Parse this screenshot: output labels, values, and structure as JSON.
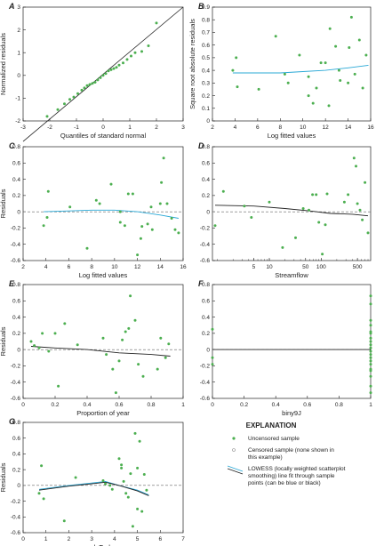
{
  "colors": {
    "point": "#4caf50",
    "lowess": "#29a8d6",
    "lowess_black": "#222222",
    "axis": "#222222",
    "zero_line": "#666666"
  },
  "chart_data": [
    {
      "panel": "A",
      "type": "scatter",
      "xlabel": "Quantiles of standard normal",
      "ylabel": "Normalized residuals",
      "xlim": [
        -3,
        3
      ],
      "ylim": [
        -2,
        3
      ],
      "xticks": [
        -3,
        -2,
        -1,
        0,
        1,
        2,
        3
      ],
      "yticks": [
        -2,
        -1,
        0,
        1,
        2,
        3
      ],
      "reference_line": [
        [
          -3,
          -2.9
        ],
        [
          3,
          3.0
        ]
      ],
      "points": [
        [
          -2.1,
          -1.8
        ],
        [
          -1.7,
          -1.5
        ],
        [
          -1.45,
          -1.25
        ],
        [
          -1.25,
          -1.05
        ],
        [
          -1.1,
          -0.95
        ],
        [
          -0.95,
          -0.8
        ],
        [
          -0.8,
          -0.65
        ],
        [
          -0.7,
          -0.55
        ],
        [
          -0.6,
          -0.45
        ],
        [
          -0.5,
          -0.4
        ],
        [
          -0.4,
          -0.35
        ],
        [
          -0.3,
          -0.3
        ],
        [
          -0.2,
          -0.2
        ],
        [
          -0.1,
          -0.1
        ],
        [
          0.0,
          0.0
        ],
        [
          0.1,
          0.08
        ],
        [
          0.2,
          0.2
        ],
        [
          0.3,
          0.25
        ],
        [
          0.4,
          0.3
        ],
        [
          0.5,
          0.35
        ],
        [
          0.6,
          0.45
        ],
        [
          0.75,
          0.55
        ],
        [
          0.9,
          0.7
        ],
        [
          1.05,
          0.85
        ],
        [
          1.2,
          1.0
        ],
        [
          1.45,
          1.05
        ],
        [
          1.7,
          1.3
        ],
        [
          2.0,
          2.3
        ]
      ]
    },
    {
      "panel": "B",
      "type": "scatter",
      "xlabel": "Log fitted values",
      "ylabel": "Square root absolute residuals",
      "xlim": [
        2,
        16
      ],
      "ylim": [
        0,
        0.9
      ],
      "xticks": [
        2,
        4,
        6,
        8,
        10,
        12,
        14,
        16
      ],
      "yticks": [
        0,
        0.1,
        0.2,
        0.3,
        0.4,
        0.5,
        0.6,
        0.7,
        0.8,
        0.9
      ],
      "lowess_color": "lowess",
      "lowess": [
        [
          3.8,
          0.38
        ],
        [
          6,
          0.38
        ],
        [
          8,
          0.38
        ],
        [
          10,
          0.39
        ],
        [
          12,
          0.4
        ],
        [
          14,
          0.42
        ],
        [
          15.8,
          0.44
        ]
      ],
      "points": [
        [
          3.8,
          0.4
        ],
        [
          4.1,
          0.5
        ],
        [
          4.2,
          0.27
        ],
        [
          6.1,
          0.25
        ],
        [
          7.6,
          0.67
        ],
        [
          8.4,
          0.37
        ],
        [
          8.7,
          0.3
        ],
        [
          9.7,
          0.52
        ],
        [
          10.5,
          0.35
        ],
        [
          10.5,
          0.2
        ],
        [
          10.9,
          0.14
        ],
        [
          11.2,
          0.26
        ],
        [
          11.6,
          0.46
        ],
        [
          12.0,
          0.46
        ],
        [
          12.3,
          0.12
        ],
        [
          12.4,
          0.73
        ],
        [
          12.9,
          0.59
        ],
        [
          13.2,
          0.4
        ],
        [
          13.3,
          0.32
        ],
        [
          14.0,
          0.3
        ],
        [
          14.1,
          0.58
        ],
        [
          14.3,
          0.82
        ],
        [
          14.6,
          0.37
        ],
        [
          15.0,
          0.64
        ],
        [
          15.3,
          0.26
        ],
        [
          15.6,
          0.52
        ]
      ]
    },
    {
      "panel": "C",
      "type": "scatter",
      "xlabel": "Log fitted values",
      "ylabel": "Residuals",
      "xlim": [
        2,
        16
      ],
      "ylim": [
        -0.6,
        0.8
      ],
      "xticks": [
        2,
        4,
        6,
        8,
        10,
        12,
        14,
        16
      ],
      "yticks": [
        -0.6,
        -0.4,
        -0.2,
        0,
        0.2,
        0.4,
        0.6,
        0.8
      ],
      "lowess_color": "lowess",
      "zero_line": true,
      "lowess": [
        [
          3.8,
          0.0
        ],
        [
          6,
          0.01
        ],
        [
          8,
          0.02
        ],
        [
          10,
          0.02
        ],
        [
          12,
          0.0
        ],
        [
          14,
          -0.04
        ],
        [
          15.6,
          -0.08
        ]
      ],
      "points": [
        [
          3.8,
          -0.17
        ],
        [
          4.1,
          -0.07
        ],
        [
          4.2,
          0.25
        ],
        [
          6.1,
          0.06
        ],
        [
          7.6,
          -0.45
        ],
        [
          8.4,
          0.14
        ],
        [
          8.7,
          0.1
        ],
        [
          9.7,
          0.34
        ],
        [
          10.5,
          0.0
        ],
        [
          10.5,
          -0.13
        ],
        [
          10.9,
          -0.17
        ],
        [
          11.2,
          0.22
        ],
        [
          11.6,
          0.22
        ],
        [
          12.0,
          -0.53
        ],
        [
          12.3,
          -0.33
        ],
        [
          12.4,
          -0.18
        ],
        [
          12.9,
          -0.15
        ],
        [
          13.2,
          0.06
        ],
        [
          13.3,
          -0.22
        ],
        [
          14.0,
          0.1
        ],
        [
          14.1,
          0.36
        ],
        [
          14.3,
          0.66
        ],
        [
          14.6,
          0.1
        ],
        [
          15.0,
          -0.08
        ],
        [
          15.3,
          -0.22
        ],
        [
          15.6,
          -0.26
        ]
      ]
    },
    {
      "panel": "D",
      "type": "scatter",
      "xlabel": "Streamflow",
      "ylabel": "",
      "xscale": "log",
      "xlim": [
        0.8,
        900
      ],
      "ylim": [
        -0.6,
        0.8
      ],
      "xticks": [
        5,
        10,
        50,
        100,
        500
      ],
      "yticks": [
        -0.6,
        -0.4,
        -0.2,
        0,
        0.2,
        0.4,
        0.6,
        0.8
      ],
      "lowess_color": "lowess_black",
      "zero_line": true,
      "lowess": [
        [
          0.9,
          0.08
        ],
        [
          5,
          0.07
        ],
        [
          20,
          0.04
        ],
        [
          60,
          0.01
        ],
        [
          150,
          -0.02
        ],
        [
          400,
          -0.03
        ],
        [
          800,
          -0.05
        ]
      ],
      "points": [
        [
          0.9,
          -0.17
        ],
        [
          1.3,
          0.25
        ],
        [
          3.3,
          0.07
        ],
        [
          4.5,
          -0.07
        ],
        [
          10,
          0.12
        ],
        [
          18,
          -0.44
        ],
        [
          32,
          -0.32
        ],
        [
          45,
          0.04
        ],
        [
          58,
          0.02
        ],
        [
          68,
          0.21
        ],
        [
          80,
          0.21
        ],
        [
          90,
          -0.13
        ],
        [
          105,
          -0.52
        ],
        [
          120,
          -0.16
        ],
        [
          130,
          0.22
        ],
        [
          280,
          0.12
        ],
        [
          330,
          0.21
        ],
        [
          430,
          0.66
        ],
        [
          470,
          0.56
        ],
        [
          500,
          0.1
        ],
        [
          560,
          0.02
        ],
        [
          620,
          -0.1
        ],
        [
          700,
          0.36
        ],
        [
          800,
          -0.26
        ]
      ]
    },
    {
      "panel": "E",
      "type": "scatter",
      "xlabel": "Proportion of year",
      "ylabel": "Residuals",
      "xlim": [
        0,
        1
      ],
      "ylim": [
        -0.6,
        0.8
      ],
      "xticks": [
        0,
        0.2,
        0.4,
        0.6,
        0.8,
        1.0
      ],
      "yticks": [
        -0.6,
        -0.4,
        -0.2,
        0,
        0.2,
        0.4,
        0.6,
        0.8
      ],
      "lowess_color": "lowess_black",
      "zero_line": true,
      "lowess": [
        [
          0.05,
          0.04
        ],
        [
          0.2,
          0.02
        ],
        [
          0.4,
          0.0
        ],
        [
          0.6,
          -0.04
        ],
        [
          0.8,
          -0.06
        ],
        [
          0.92,
          -0.08
        ]
      ],
      "points": [
        [
          0.05,
          0.1
        ],
        [
          0.07,
          0.05
        ],
        [
          0.1,
          0.02
        ],
        [
          0.12,
          0.2
        ],
        [
          0.16,
          -0.02
        ],
        [
          0.2,
          0.2
        ],
        [
          0.22,
          -0.45
        ],
        [
          0.26,
          0.32
        ],
        [
          0.34,
          0.06
        ],
        [
          0.5,
          0.14
        ],
        [
          0.52,
          -0.06
        ],
        [
          0.56,
          -0.24
        ],
        [
          0.58,
          -0.53
        ],
        [
          0.6,
          -0.14
        ],
        [
          0.62,
          0.12
        ],
        [
          0.64,
          0.22
        ],
        [
          0.66,
          0.26
        ],
        [
          0.67,
          0.66
        ],
        [
          0.7,
          0.36
        ],
        [
          0.72,
          -0.18
        ],
        [
          0.75,
          -0.33
        ],
        [
          0.84,
          -0.24
        ],
        [
          0.86,
          0.14
        ],
        [
          0.89,
          -0.1
        ],
        [
          0.91,
          0.07
        ]
      ]
    },
    {
      "panel": "F",
      "type": "scatter",
      "xlabel": "biny9J",
      "ylabel": "",
      "xlim": [
        0,
        1
      ],
      "ylim": [
        -0.6,
        0.8
      ],
      "xticks": [
        0,
        0.2,
        0.4,
        0.6,
        0.8,
        1.0
      ],
      "yticks": [
        -0.6,
        -0.4,
        -0.2,
        0,
        0.2,
        0.4,
        0.6,
        0.8
      ],
      "lowess_color": "lowess_black",
      "zero_line": true,
      "lowess": [
        [
          0,
          0.0
        ],
        [
          1,
          0.0
        ]
      ],
      "points": [
        [
          0,
          0.25
        ],
        [
          0,
          -0.1
        ],
        [
          0,
          -0.18
        ],
        [
          1,
          0.66
        ],
        [
          1,
          0.56
        ],
        [
          1,
          0.36
        ],
        [
          1,
          0.3
        ],
        [
          1,
          0.22
        ],
        [
          1,
          0.2
        ],
        [
          1,
          0.14
        ],
        [
          1,
          0.1
        ],
        [
          1,
          0.06
        ],
        [
          1,
          0.02
        ],
        [
          1,
          -0.02
        ],
        [
          1,
          -0.06
        ],
        [
          1,
          -0.1
        ],
        [
          1,
          -0.14
        ],
        [
          1,
          -0.18
        ],
        [
          1,
          -0.24
        ],
        [
          1,
          -0.26
        ],
        [
          1,
          -0.33
        ],
        [
          1,
          -0.45
        ],
        [
          1,
          -0.53
        ]
      ]
    },
    {
      "panel": "G",
      "type": "scatter",
      "xlabel": "lnTurb",
      "ylabel": "Residuals",
      "xlim": [
        0,
        7
      ],
      "ylim": [
        -0.6,
        0.8
      ],
      "xticks": [
        0,
        1,
        2,
        3,
        4,
        5,
        6,
        7
      ],
      "yticks": [
        -0.6,
        -0.4,
        -0.2,
        0,
        0.2,
        0.4,
        0.6,
        0.8
      ],
      "lowess_color": "lowess",
      "lowess2_color": "lowess_black",
      "zero_line": true,
      "lowess": [
        [
          0.7,
          -0.05
        ],
        [
          2,
          0.0
        ],
        [
          3,
          0.03
        ],
        [
          3.6,
          0.05
        ],
        [
          4.2,
          0.0
        ],
        [
          5,
          -0.06
        ],
        [
          5.5,
          -0.12
        ]
      ],
      "lowess2": [
        [
          0.7,
          -0.06
        ],
        [
          2,
          -0.01
        ],
        [
          3,
          0.02
        ],
        [
          3.6,
          0.04
        ],
        [
          4.2,
          0.0
        ],
        [
          5,
          -0.07
        ],
        [
          5.5,
          -0.13
        ]
      ],
      "points": [
        [
          0.7,
          -0.1
        ],
        [
          0.8,
          0.25
        ],
        [
          0.9,
          -0.17
        ],
        [
          1.8,
          -0.45
        ],
        [
          2.3,
          0.1
        ],
        [
          3.5,
          0.06
        ],
        [
          3.6,
          0.02
        ],
        [
          3.8,
          0.0
        ],
        [
          3.9,
          -0.05
        ],
        [
          4.2,
          0.34
        ],
        [
          4.3,
          0.26
        ],
        [
          4.3,
          0.22
        ],
        [
          4.4,
          0.05
        ],
        [
          4.5,
          -0.1
        ],
        [
          4.6,
          -0.15
        ],
        [
          4.7,
          0.15
        ],
        [
          4.8,
          -0.52
        ],
        [
          4.9,
          0.66
        ],
        [
          5.0,
          -0.3
        ],
        [
          5.0,
          0.22
        ],
        [
          5.1,
          0.56
        ],
        [
          5.2,
          -0.33
        ],
        [
          5.3,
          0.14
        ],
        [
          5.4,
          -0.06
        ]
      ]
    }
  ],
  "legend": {
    "title": "EXPLANATION",
    "uncensored": "Uncensored sample",
    "censored": [
      "Censored sample (none shown in",
      "this example)"
    ],
    "lowess": [
      "LOWESS (locally weighted scatterplot",
      "smoothing) line fit through sample",
      "points (can be blue or black)"
    ]
  }
}
